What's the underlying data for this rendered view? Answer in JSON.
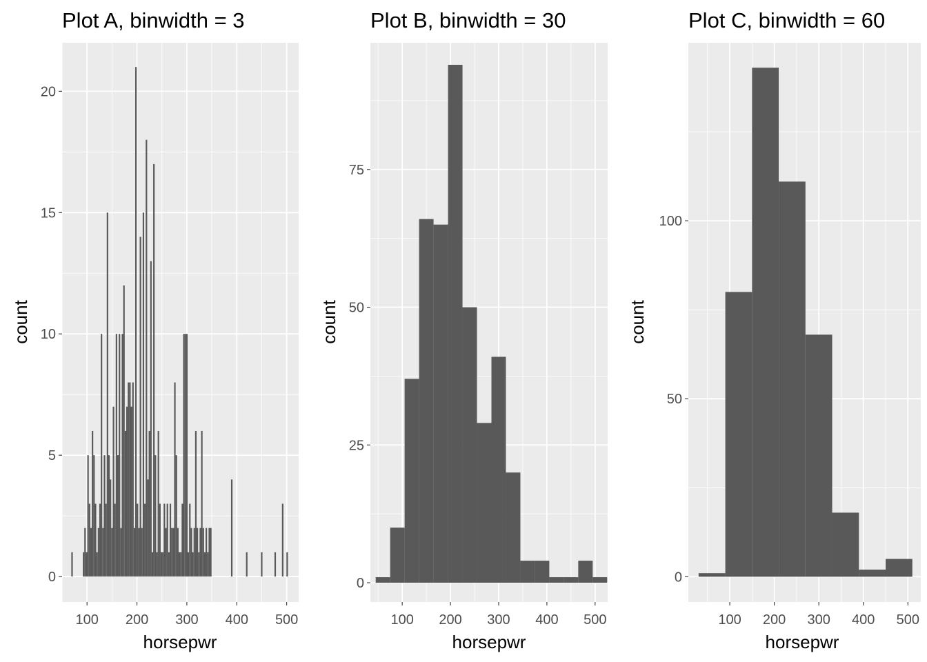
{
  "chart_data": [
    {
      "type": "bar",
      "title": "Plot A, binwidth = 3",
      "xlabel": "horsepwr",
      "ylabel": "count",
      "binwidth": 3,
      "xlim": [
        50,
        524
      ],
      "ylim": [
        -1.05,
        22
      ],
      "x_ticks": [
        100,
        200,
        300,
        400,
        500
      ],
      "y_ticks": [
        0,
        5,
        10,
        15,
        20
      ],
      "bar_color": "#595959",
      "panel_color": "#ebebeb",
      "bins": [
        {
          "x": 70,
          "count": 1
        },
        {
          "x": 93,
          "count": 1
        },
        {
          "x": 96,
          "count": 2
        },
        {
          "x": 99,
          "count": 1
        },
        {
          "x": 102,
          "count": 5
        },
        {
          "x": 105,
          "count": 3
        },
        {
          "x": 108,
          "count": 2
        },
        {
          "x": 111,
          "count": 6
        },
        {
          "x": 114,
          "count": 5
        },
        {
          "x": 117,
          "count": 3
        },
        {
          "x": 120,
          "count": 1
        },
        {
          "x": 123,
          "count": 2
        },
        {
          "x": 126,
          "count": 3
        },
        {
          "x": 129,
          "count": 10
        },
        {
          "x": 132,
          "count": 2
        },
        {
          "x": 135,
          "count": 5
        },
        {
          "x": 138,
          "count": 3
        },
        {
          "x": 141,
          "count": 15
        },
        {
          "x": 144,
          "count": 5
        },
        {
          "x": 147,
          "count": 4
        },
        {
          "x": 150,
          "count": 2
        },
        {
          "x": 153,
          "count": 7
        },
        {
          "x": 156,
          "count": 3
        },
        {
          "x": 159,
          "count": 10
        },
        {
          "x": 162,
          "count": 5
        },
        {
          "x": 165,
          "count": 10
        },
        {
          "x": 168,
          "count": 2
        },
        {
          "x": 171,
          "count": 10
        },
        {
          "x": 174,
          "count": 12
        },
        {
          "x": 177,
          "count": 6
        },
        {
          "x": 180,
          "count": 7
        },
        {
          "x": 183,
          "count": 8
        },
        {
          "x": 186,
          "count": 8
        },
        {
          "x": 189,
          "count": 7
        },
        {
          "x": 192,
          "count": 8
        },
        {
          "x": 195,
          "count": 2
        },
        {
          "x": 198,
          "count": 21
        },
        {
          "x": 201,
          "count": 3
        },
        {
          "x": 204,
          "count": 2
        },
        {
          "x": 207,
          "count": 14
        },
        {
          "x": 210,
          "count": 2
        },
        {
          "x": 213,
          "count": 15
        },
        {
          "x": 216,
          "count": 3
        },
        {
          "x": 219,
          "count": 18
        },
        {
          "x": 222,
          "count": 4
        },
        {
          "x": 225,
          "count": 6
        },
        {
          "x": 228,
          "count": 13
        },
        {
          "x": 231,
          "count": 1
        },
        {
          "x": 234,
          "count": 17
        },
        {
          "x": 237,
          "count": 5
        },
        {
          "x": 240,
          "count": 1
        },
        {
          "x": 243,
          "count": 6
        },
        {
          "x": 246,
          "count": 3
        },
        {
          "x": 249,
          "count": 1
        },
        {
          "x": 252,
          "count": 1
        },
        {
          "x": 255,
          "count": 3
        },
        {
          "x": 258,
          "count": 2
        },
        {
          "x": 261,
          "count": 3
        },
        {
          "x": 264,
          "count": 1
        },
        {
          "x": 267,
          "count": 3
        },
        {
          "x": 270,
          "count": 2
        },
        {
          "x": 273,
          "count": 2
        },
        {
          "x": 276,
          "count": 8
        },
        {
          "x": 279,
          "count": 5
        },
        {
          "x": 282,
          "count": 2
        },
        {
          "x": 285,
          "count": 1
        },
        {
          "x": 288,
          "count": 1
        },
        {
          "x": 291,
          "count": 3
        },
        {
          "x": 294,
          "count": 10
        },
        {
          "x": 297,
          "count": 10
        },
        {
          "x": 300,
          "count": 10
        },
        {
          "x": 303,
          "count": 1
        },
        {
          "x": 306,
          "count": 3
        },
        {
          "x": 309,
          "count": 2
        },
        {
          "x": 312,
          "count": 1
        },
        {
          "x": 315,
          "count": 2
        },
        {
          "x": 318,
          "count": 6
        },
        {
          "x": 321,
          "count": 2
        },
        {
          "x": 324,
          "count": 1
        },
        {
          "x": 327,
          "count": 2
        },
        {
          "x": 330,
          "count": 6
        },
        {
          "x": 333,
          "count": 2
        },
        {
          "x": 336,
          "count": 1
        },
        {
          "x": 339,
          "count": 2
        },
        {
          "x": 342,
          "count": 1
        },
        {
          "x": 345,
          "count": 2
        },
        {
          "x": 348,
          "count": 2
        },
        {
          "x": 390,
          "count": 4
        },
        {
          "x": 420,
          "count": 1
        },
        {
          "x": 450,
          "count": 1
        },
        {
          "x": 477,
          "count": 1
        },
        {
          "x": 492,
          "count": 3
        },
        {
          "x": 501,
          "count": 1
        }
      ]
    },
    {
      "type": "bar",
      "title": "Plot B, binwidth = 30",
      "xlabel": "horsepwr",
      "ylabel": "count",
      "binwidth": 30,
      "xlim": [
        34,
        526
      ],
      "ylim": [
        -3.5,
        98
      ],
      "x_ticks": [
        100,
        200,
        300,
        400,
        500
      ],
      "y_ticks": [
        0,
        25,
        50,
        75
      ],
      "bar_color": "#595959",
      "panel_color": "#ebebeb",
      "bins": [
        {
          "x": 60,
          "count": 1
        },
        {
          "x": 90,
          "count": 10
        },
        {
          "x": 120,
          "count": 37
        },
        {
          "x": 150,
          "count": 66
        },
        {
          "x": 180,
          "count": 65
        },
        {
          "x": 210,
          "count": 94
        },
        {
          "x": 240,
          "count": 50
        },
        {
          "x": 270,
          "count": 29
        },
        {
          "x": 300,
          "count": 41
        },
        {
          "x": 330,
          "count": 20
        },
        {
          "x": 360,
          "count": 4
        },
        {
          "x": 390,
          "count": 4
        },
        {
          "x": 420,
          "count": 1
        },
        {
          "x": 450,
          "count": 1
        },
        {
          "x": 480,
          "count": 4
        },
        {
          "x": 510,
          "count": 1
        }
      ]
    },
    {
      "type": "bar",
      "title": "Plot C, binwidth = 60",
      "xlabel": "horsepwr",
      "ylabel": "count",
      "binwidth": 60,
      "xlim": [
        7,
        529
      ],
      "ylim": [
        -7.1,
        150
      ],
      "x_ticks": [
        100,
        200,
        300,
        400,
        500
      ],
      "y_ticks": [
        0,
        50,
        100
      ],
      "bar_color": "#595959",
      "panel_color": "#ebebeb",
      "bins": [
        {
          "x": 60,
          "count": 1
        },
        {
          "x": 120,
          "count": 80
        },
        {
          "x": 180,
          "count": 143
        },
        {
          "x": 240,
          "count": 111
        },
        {
          "x": 300,
          "count": 68
        },
        {
          "x": 360,
          "count": 18
        },
        {
          "x": 420,
          "count": 2
        },
        {
          "x": 480,
          "count": 5
        }
      ]
    }
  ]
}
